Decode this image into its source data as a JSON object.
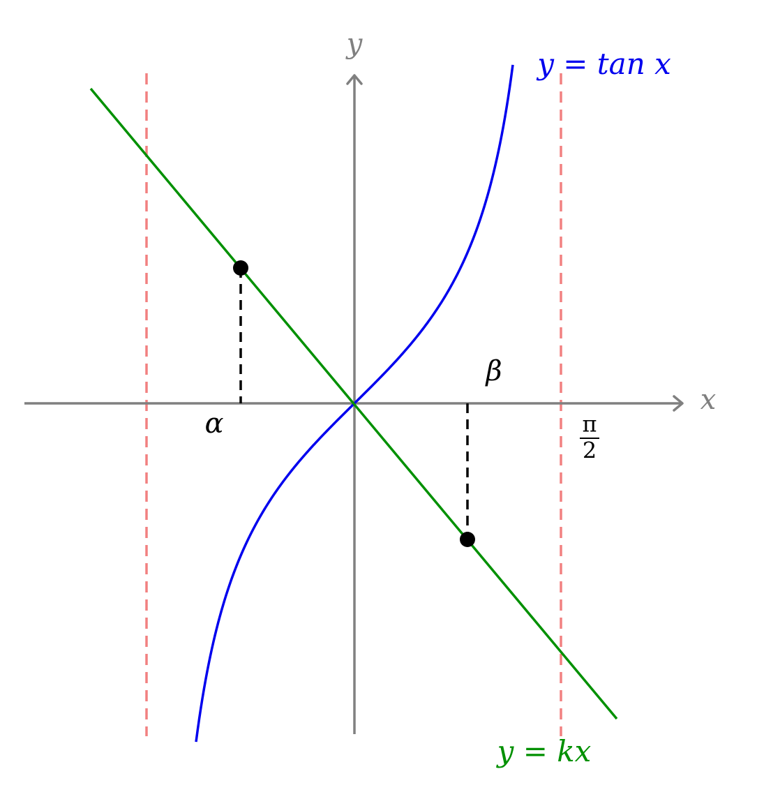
{
  "axes": {
    "x_label": "x",
    "y_label": "y"
  },
  "curves": {
    "tan_label": "y = tan x",
    "line_label": "y = kx"
  },
  "points": {
    "alpha": "α",
    "beta": "β"
  },
  "asymptote_label": {
    "numerator": "π",
    "denominator": "2"
  }
}
